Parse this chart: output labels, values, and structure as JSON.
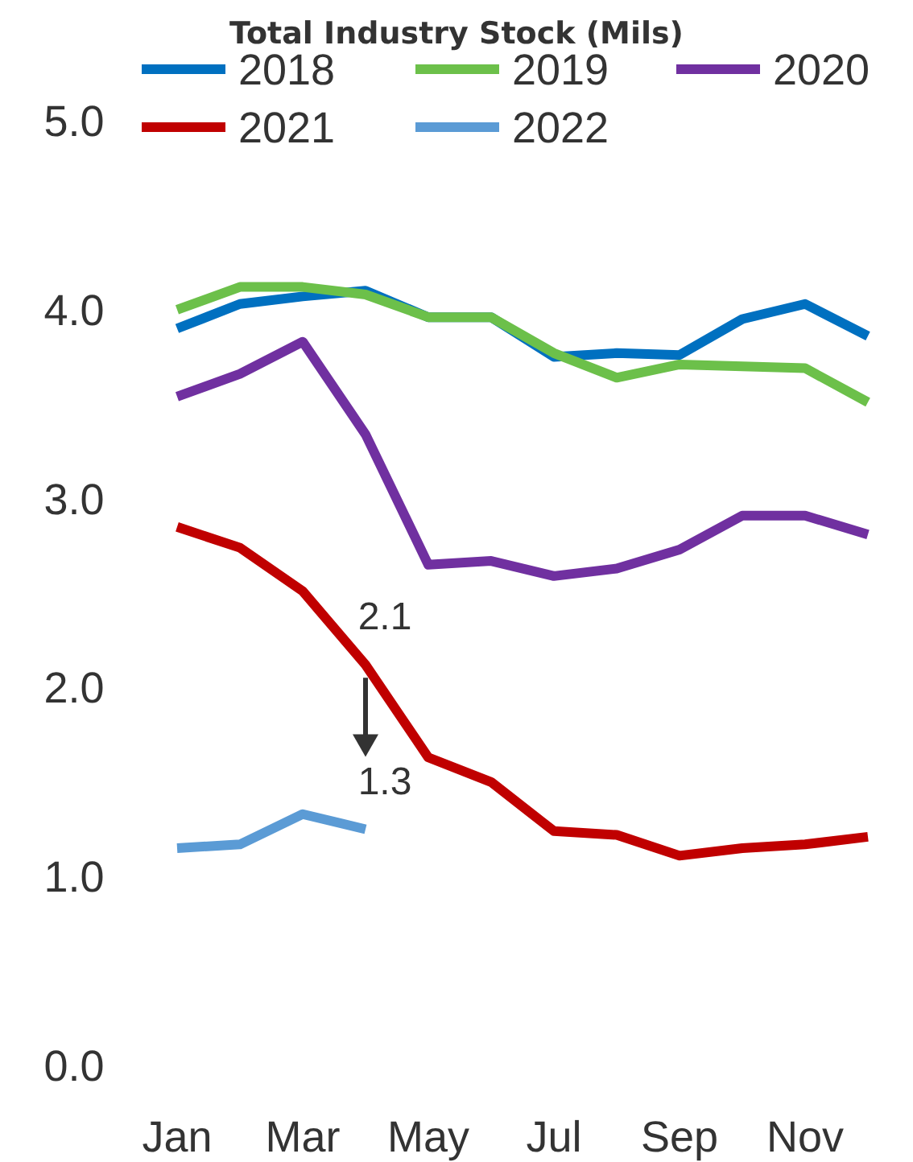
{
  "chart_data": {
    "type": "line",
    "title": "Total Industry Stock (Mils)",
    "categories": [
      "Jan",
      null,
      "Mar",
      null,
      "May",
      null,
      "Jul",
      null,
      "Sep",
      null,
      "Nov",
      null
    ],
    "ylim": [
      0,
      5
    ],
    "yticks": [
      {
        "value": 0,
        "label": "0.0"
      },
      {
        "value": 1,
        "label": "1.0"
      },
      {
        "value": 2,
        "label": "2.0"
      },
      {
        "value": 3,
        "label": "3.0"
      },
      {
        "value": 4,
        "label": "4.0"
      },
      {
        "value": 5,
        "label": "5.0"
      }
    ],
    "grid": false,
    "legend": "top",
    "marker": "none",
    "line_style": "solid",
    "series": [
      {
        "name": "2018",
        "color": "#0070c0",
        "values": [
          3.9,
          4.03,
          4.07,
          4.1,
          3.96,
          3.96,
          3.75,
          3.77,
          3.76,
          3.95,
          4.03,
          3.86
        ]
      },
      {
        "name": "2019",
        "color": "#6cc04a",
        "values": [
          4.0,
          4.12,
          4.12,
          4.08,
          3.96,
          3.96,
          3.77,
          3.64,
          3.71,
          3.7,
          3.69,
          3.51
        ]
      },
      {
        "name": "2020",
        "color": "#7030a0",
        "values": [
          3.54,
          3.66,
          3.83,
          3.34,
          2.65,
          2.67,
          2.59,
          2.63,
          2.73,
          2.91,
          2.91,
          2.81
        ]
      },
      {
        "name": "2021",
        "color": "#c00000",
        "values": [
          2.85,
          2.74,
          2.51,
          2.12,
          1.63,
          1.5,
          1.24,
          1.22,
          1.11,
          1.15,
          1.17,
          1.21
        ],
        "value_labels": [
          null,
          null,
          null,
          "2.1",
          null,
          null,
          null,
          null,
          null,
          null,
          null,
          null
        ]
      },
      {
        "name": "2022",
        "color": "#5b9bd5",
        "values": [
          1.15,
          1.17,
          1.33,
          1.25,
          null,
          null,
          null,
          null,
          null,
          null,
          null,
          null
        ],
        "value_labels": [
          null,
          null,
          null,
          "1.3",
          null,
          null,
          null,
          null,
          null,
          null,
          null,
          null
        ]
      }
    ]
  }
}
